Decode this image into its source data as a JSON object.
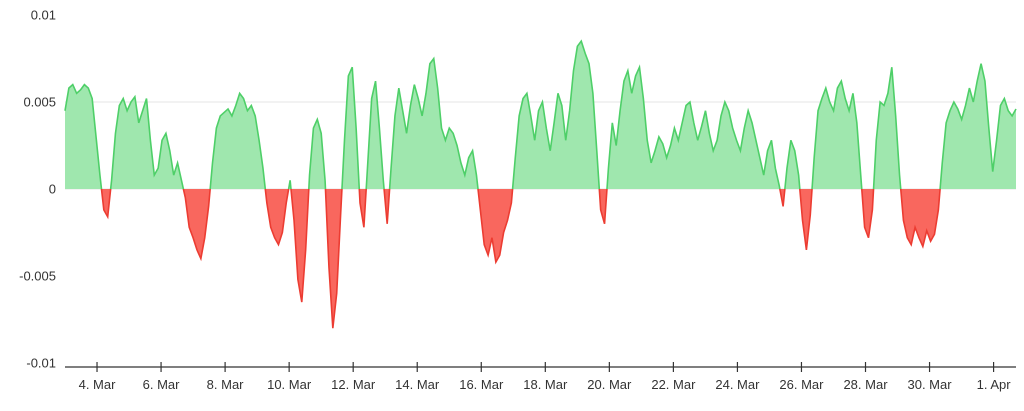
{
  "chart": {
    "title": "",
    "y_axis": {
      "ticks": [
        {
          "value": 0.01,
          "label": "0.01"
        },
        {
          "value": 0.005,
          "label": "0.005"
        },
        {
          "value": 0,
          "label": "0"
        },
        {
          "value": -0.005,
          "label": "-0.005"
        },
        {
          "value": -0.01,
          "label": "-0.01"
        }
      ],
      "gridline_values": [
        0.005,
        0
      ]
    },
    "x_axis": {
      "ticks": [
        {
          "day": 4,
          "label": "4. Mar"
        },
        {
          "day": 6,
          "label": "6. Mar"
        },
        {
          "day": 8,
          "label": "8. Mar"
        },
        {
          "day": 10,
          "label": "10. Mar"
        },
        {
          "day": 12,
          "label": "12. Mar"
        },
        {
          "day": 14,
          "label": "14. Mar"
        },
        {
          "day": 16,
          "label": "16. Mar"
        },
        {
          "day": 18,
          "label": "18. Mar"
        },
        {
          "day": 20,
          "label": "20. Mar"
        },
        {
          "day": 22,
          "label": "22. Mar"
        },
        {
          "day": 24,
          "label": "24. Mar"
        },
        {
          "day": 26,
          "label": "26. Mar"
        },
        {
          "day": 28,
          "label": "28. Mar"
        },
        {
          "day": 30,
          "label": "30. Mar"
        },
        {
          "day": 32,
          "label": "1. Apr"
        }
      ]
    }
  },
  "chart_data": {
    "type": "area",
    "title": "",
    "xlabel": "",
    "ylabel": "",
    "ylim": [
      -0.01,
      0.01
    ],
    "x_domain": [
      3,
      32.7
    ],
    "x_unit": "day of March (32 = 1 Apr)",
    "grid": "horizontal",
    "legend": "none",
    "colors": {
      "positive_fill": "#9fe7ae",
      "positive_line": "#4ecf68",
      "negative_fill": "#f9675e",
      "negative_line": "#ec3c32",
      "gridline": "#e4e4e4",
      "axis_line": "#333333"
    },
    "series": [
      {
        "name": "value",
        "values": [
          0.0045,
          0.0058,
          0.006,
          0.0055,
          0.0057,
          0.006,
          0.0058,
          0.0052,
          0.003,
          0.0008,
          -0.0012,
          -0.0016,
          0.0005,
          0.0032,
          0.0048,
          0.0052,
          0.0045,
          0.005,
          0.0053,
          0.0038,
          0.0045,
          0.0052,
          0.0028,
          0.0008,
          0.0012,
          0.0028,
          0.0032,
          0.0022,
          0.0008,
          0.0015,
          0.0005,
          -0.0005,
          -0.0022,
          -0.0028,
          -0.0035,
          -0.004,
          -0.0028,
          -0.001,
          0.0015,
          0.0035,
          0.0042,
          0.0044,
          0.0046,
          0.0042,
          0.0048,
          0.0055,
          0.0052,
          0.0045,
          0.0048,
          0.0042,
          0.0028,
          0.0012,
          -0.0008,
          -0.0022,
          -0.0028,
          -0.0032,
          -0.0025,
          -0.0008,
          0.0005,
          -0.0018,
          -0.0052,
          -0.0065,
          -0.0035,
          0.0008,
          0.0035,
          0.004,
          0.0032,
          0.0005,
          -0.0045,
          -0.008,
          -0.006,
          -0.0015,
          0.0028,
          0.0065,
          0.007,
          0.0035,
          -0.0008,
          -0.0022,
          0.0015,
          0.0052,
          0.0062,
          0.0035,
          0.0005,
          -0.002,
          0.0012,
          0.0042,
          0.0058,
          0.0045,
          0.0032,
          0.0048,
          0.006,
          0.0052,
          0.0042,
          0.0055,
          0.0072,
          0.0075,
          0.0058,
          0.0035,
          0.0028,
          0.0035,
          0.0032,
          0.0025,
          0.0015,
          0.0008,
          0.0018,
          0.0022,
          0.0008,
          -0.0012,
          -0.0032,
          -0.0038,
          -0.0028,
          -0.0042,
          -0.0038,
          -0.0025,
          -0.0018,
          -0.0008,
          0.0018,
          0.0042,
          0.0052,
          0.0055,
          0.0042,
          0.0028,
          0.0045,
          0.005,
          0.0035,
          0.0022,
          0.0038,
          0.0055,
          0.0048,
          0.0028,
          0.0045,
          0.0068,
          0.0082,
          0.0085,
          0.0078,
          0.0072,
          0.0055,
          0.0022,
          -0.0012,
          -0.002,
          0.0012,
          0.0038,
          0.0025,
          0.0045,
          0.0062,
          0.0068,
          0.0055,
          0.0065,
          0.007,
          0.0052,
          0.0028,
          0.0015,
          0.0022,
          0.003,
          0.0026,
          0.0018,
          0.0025,
          0.0035,
          0.0028,
          0.0038,
          0.0048,
          0.005,
          0.0038,
          0.0028,
          0.0036,
          0.0045,
          0.0032,
          0.0022,
          0.0028,
          0.0042,
          0.005,
          0.0045,
          0.0035,
          0.0028,
          0.0022,
          0.0035,
          0.0045,
          0.0038,
          0.0028,
          0.0018,
          0.0008,
          0.0022,
          0.0028,
          0.0012,
          0.0002,
          -0.001,
          0.0012,
          0.0028,
          0.0022,
          0.0008,
          -0.0018,
          -0.0035,
          -0.0015,
          0.0018,
          0.0045,
          0.0052,
          0.0058,
          0.005,
          0.0045,
          0.0058,
          0.0062,
          0.0052,
          0.0045,
          0.0055,
          0.0038,
          0.0008,
          -0.0022,
          -0.0028,
          -0.0012,
          0.0028,
          0.005,
          0.0048,
          0.0055,
          0.007,
          0.0042,
          0.0008,
          -0.0018,
          -0.0028,
          -0.0032,
          -0.0022,
          -0.0028,
          -0.0033,
          -0.0024,
          -0.003,
          -0.0026,
          -0.0012,
          0.0015,
          0.0038,
          0.0045,
          0.005,
          0.0046,
          0.004,
          0.0048,
          0.0058,
          0.005,
          0.0062,
          0.0072,
          0.0062,
          0.0035,
          0.001,
          0.0028,
          0.0048,
          0.0052,
          0.0045,
          0.0042,
          0.0046
        ]
      }
    ]
  }
}
